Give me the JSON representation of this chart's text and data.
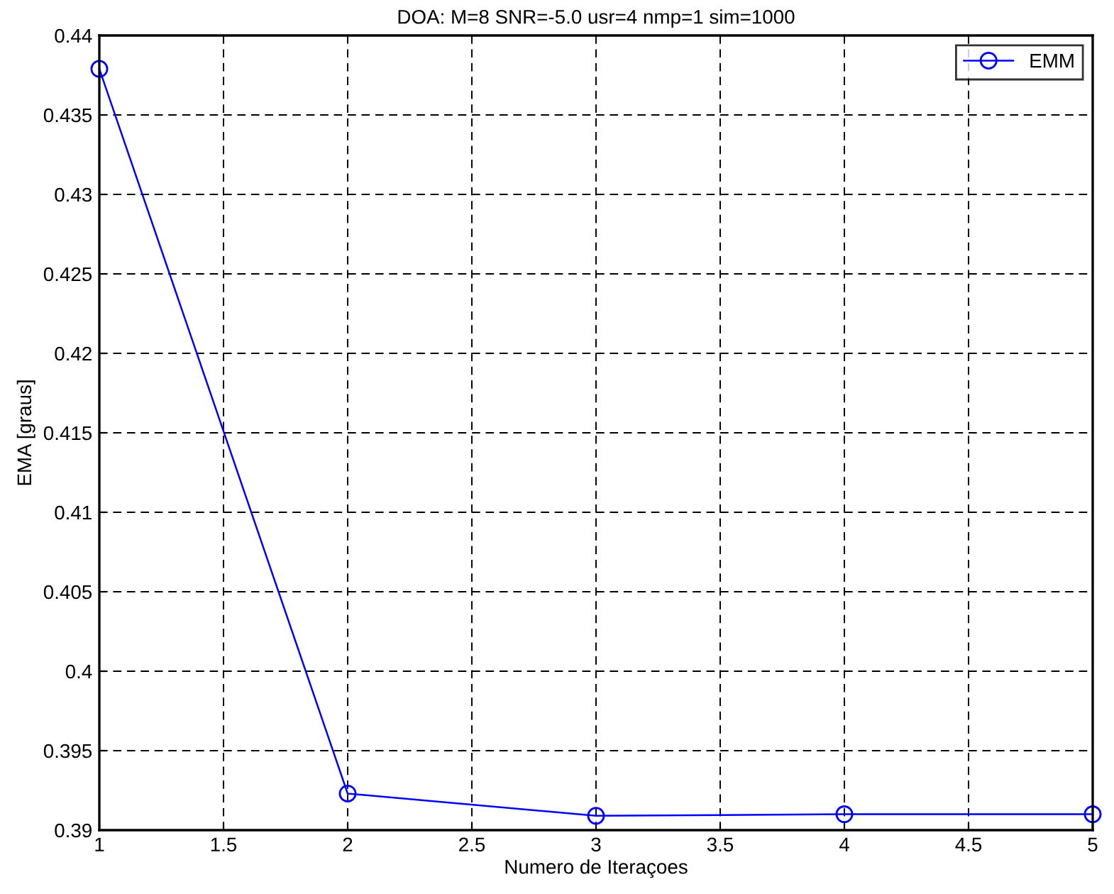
{
  "chart_data": {
    "type": "line",
    "title": "DOA: M=8 SNR=-5.0 usr=4 nmp=1 sim=1000",
    "xlabel": "Numero de Iteraçoes",
    "ylabel": "EMA [graus]",
    "x": [
      1,
      2,
      3,
      4,
      5
    ],
    "series": [
      {
        "name": "EMM",
        "color": "#0000ff",
        "values": [
          0.4379,
          0.3923,
          0.3909,
          0.391,
          0.391
        ]
      }
    ],
    "xlim": [
      1,
      5
    ],
    "xticks": [
      1,
      1.5,
      2,
      2.5,
      3,
      3.5,
      4,
      4.5,
      5
    ],
    "ylim": [
      0.39,
      0.44
    ],
    "yticks": [
      0.39,
      0.395,
      0.4,
      0.405,
      0.41,
      0.415,
      0.42,
      0.425,
      0.43,
      0.435,
      0.44
    ],
    "grid": true,
    "legend": "top right",
    "marker": "circle",
    "line_style": "solid"
  }
}
